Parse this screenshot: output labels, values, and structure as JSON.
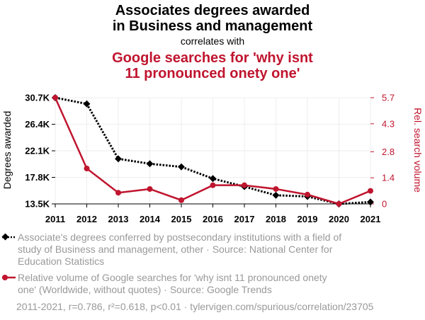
{
  "title_line1": "Associates degrees awarded",
  "title_line2": "in Business and management",
  "subtitle": "correlates with",
  "title2_line1": "Google searches for 'why isnt",
  "title2_line2": "11 pronounced onety one'",
  "legend": {
    "series1_line1": "Associate's degrees conferred by postsecondary institutions with a field of",
    "series1_line2": "study of Business and management, other · Source: National Center for",
    "series1_line3": "Education Statistics",
    "series2_line1": "Relative volume of Google searches for 'why isnt 11 pronounced onety",
    "series2_line2": "one' (Worldwide, without quotes) · Source: Google Trends"
  },
  "footer": "2011-2021, r=0.786, r²=0.618, p<0.01 · tylervigen.com/spurious/correlation/23705",
  "colors": {
    "series1": "#000000",
    "series2": "#c0152f",
    "muted": "#999999"
  },
  "chart_data": {
    "type": "line",
    "x": [
      2011,
      2012,
      2013,
      2014,
      2015,
      2016,
      2017,
      2018,
      2019,
      2020,
      2021
    ],
    "xlabel": "",
    "ylabel_left": "Degrees awarded",
    "ylabel_right": "Rel. search volume",
    "ylim_left": [
      13500,
      30700
    ],
    "ylim_right": [
      0,
      5.7
    ],
    "yticks_left": [
      13500,
      17800,
      22100,
      26400,
      30700
    ],
    "yticks_left_labels": [
      "13.5K",
      "17.8K",
      "22.1K",
      "26.4K",
      "30.7K"
    ],
    "yticks_right": [
      0,
      1.4,
      2.8,
      4.3,
      5.7
    ],
    "yticks_right_labels": [
      "0",
      "1.4",
      "2.8",
      "4.3",
      "5.7"
    ],
    "grid": true,
    "series": [
      {
        "name": "Associate's degrees conferred by postsecondary institutions with a field of study of Business and management, other",
        "axis": "left",
        "style": "dotted",
        "marker": "diamond",
        "color": "#000000",
        "values": [
          30700,
          29700,
          20800,
          20000,
          19500,
          17600,
          16300,
          14900,
          14700,
          13500,
          13800
        ]
      },
      {
        "name": "Relative volume of Google searches for 'why isnt 11 pronounced onety one' (Worldwide, without quotes)",
        "axis": "right",
        "style": "solid",
        "marker": "circle",
        "color": "#c0152f",
        "values": [
          5.7,
          1.9,
          0.6,
          0.8,
          0.2,
          1.0,
          1.0,
          0.8,
          0.5,
          0,
          0.7
        ]
      }
    ]
  }
}
